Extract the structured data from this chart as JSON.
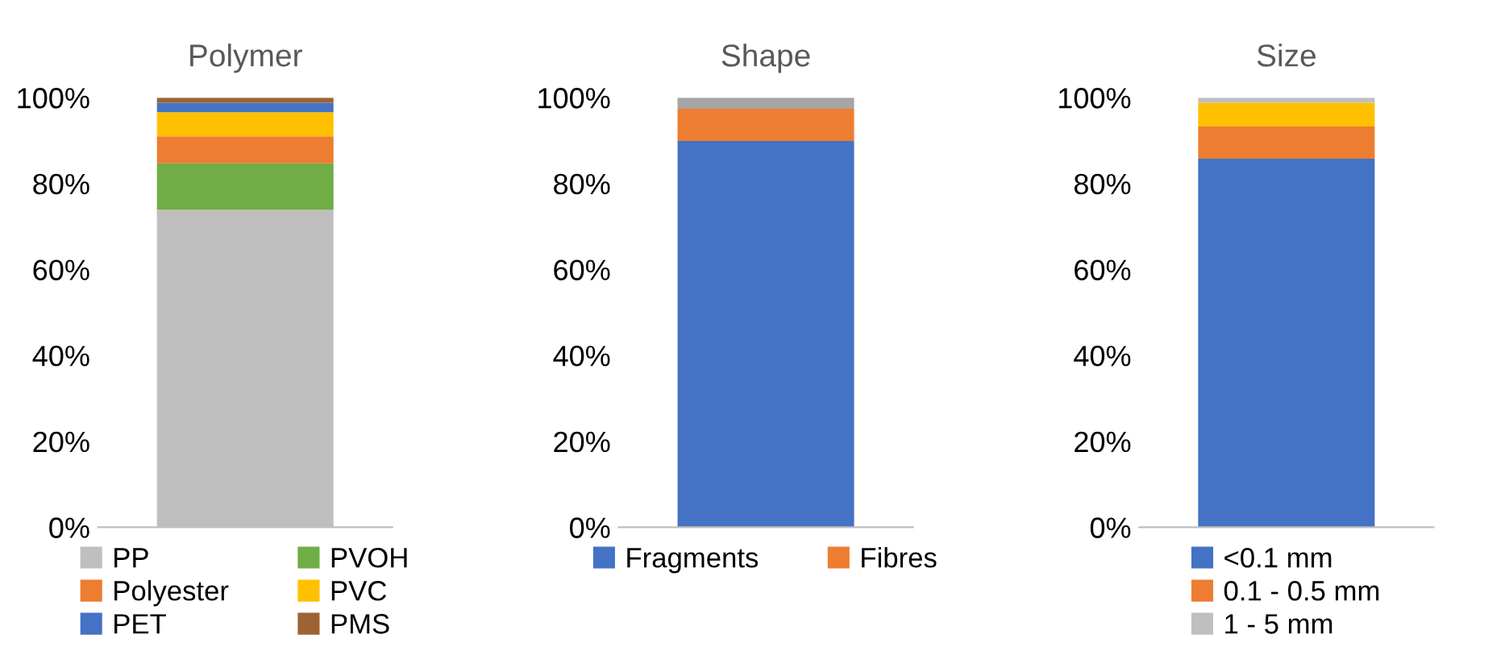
{
  "chart_data": [
    {
      "type": "bar",
      "title": "Polymer",
      "categories": [
        null
      ],
      "stacked": true,
      "legend": "bottom",
      "ylim": [
        0,
        100
      ],
      "yticks": [
        {
          "value": 0,
          "label": "0%"
        },
        {
          "value": 20,
          "label": "20%"
        },
        {
          "value": 40,
          "label": "40%"
        },
        {
          "value": 60,
          "label": "60%"
        },
        {
          "value": 80,
          "label": "80%"
        },
        {
          "value": 100,
          "label": "100%"
        }
      ],
      "series": [
        {
          "name": "PP",
          "color": "#bfbfbf",
          "values": [
            73.9
          ]
        },
        {
          "name": "PVOH",
          "color": "#70ad47",
          "values": [
            10.8
          ]
        },
        {
          "name": "Polyester",
          "color": "#ed7d31",
          "values": [
            6.3
          ]
        },
        {
          "name": "PVC",
          "color": "#ffc000",
          "values": [
            5.6
          ]
        },
        {
          "name": "PET",
          "color": "#4472c4",
          "values": [
            2.2
          ]
        },
        {
          "name": "PMS",
          "color": "#9e6333",
          "values": [
            1.2
          ]
        }
      ]
    },
    {
      "type": "bar",
      "title": "Shape",
      "categories": [
        null
      ],
      "stacked": true,
      "legend": "bottom",
      "ylim": [
        0,
        100
      ],
      "yticks": [
        {
          "value": 0,
          "label": "0%"
        },
        {
          "value": 20,
          "label": "20%"
        },
        {
          "value": 40,
          "label": "40%"
        },
        {
          "value": 60,
          "label": "60%"
        },
        {
          "value": 80,
          "label": "80%"
        },
        {
          "value": 100,
          "label": "100%"
        }
      ],
      "series": [
        {
          "name": "Fragments",
          "color": "#4472c4",
          "values": [
            89.9
          ]
        },
        {
          "name": "Fibres",
          "color": "#ed7d31",
          "values": [
            7.5
          ]
        },
        {
          "color": "#a5a5a5",
          "values": [
            2.6
          ]
        }
      ]
    },
    {
      "type": "bar",
      "title": "Size",
      "categories": [
        null
      ],
      "stacked": true,
      "legend": "bottom",
      "ylim": [
        0,
        100
      ],
      "yticks": [
        {
          "value": 0,
          "label": "0%"
        },
        {
          "value": 20,
          "label": "20%"
        },
        {
          "value": 40,
          "label": "40%"
        },
        {
          "value": 60,
          "label": "60%"
        },
        {
          "value": 80,
          "label": "80%"
        },
        {
          "value": 100,
          "label": "100%"
        }
      ],
      "series": [
        {
          "name": "<0.1 mm",
          "color": "#4472c4",
          "values": [
            85.8
          ]
        },
        {
          "name": "0.1 - 0.5 mm",
          "color": "#ed7d31",
          "values": [
            7.5
          ]
        },
        {
          "color": "#ffc000",
          "values": [
            5.5
          ]
        },
        {
          "name": "1 - 5 mm",
          "color": "#bfbfbf",
          "values": [
            1.2
          ]
        }
      ]
    }
  ]
}
